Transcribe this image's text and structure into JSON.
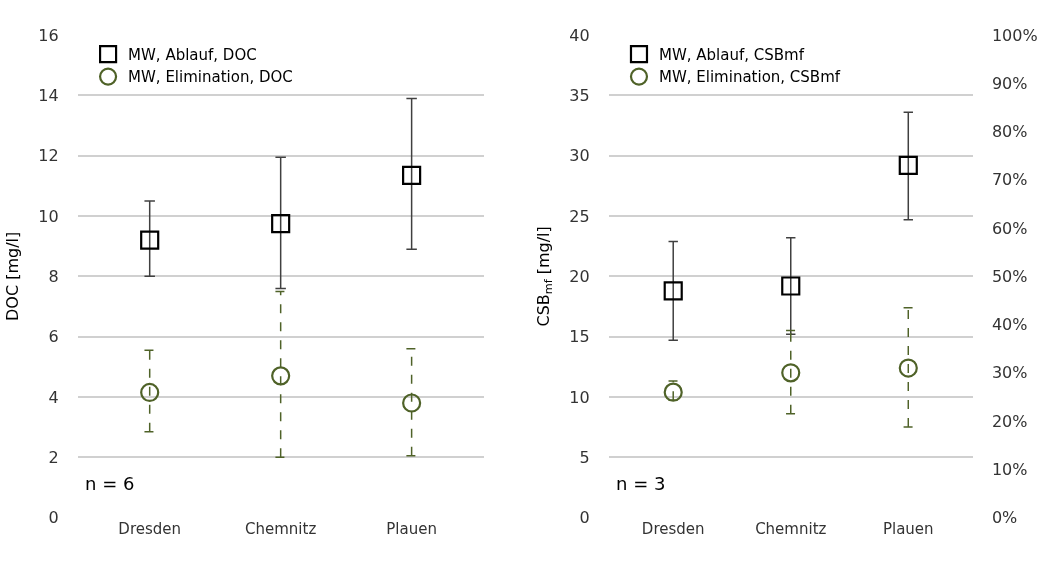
{
  "chart_data": [
    {
      "type": "scatter",
      "categories": [
        "Dresden",
        "Chemnitz",
        "Plauen"
      ],
      "ylabel": "DOC [mg/l]",
      "ylim": [
        0,
        16
      ],
      "yticks": [
        0,
        2,
        4,
        6,
        8,
        10,
        12,
        14,
        16
      ],
      "grid": "y",
      "legend": "top left",
      "annotations": [
        "n = 6"
      ],
      "series": [
        {
          "name": "MW, Ablauf, DOC",
          "color": "#000000",
          "marker": "square",
          "line_style": "solid",
          "values": [
            9.2,
            9.75,
            11.35
          ],
          "errors": [
            [
              8.0,
              10.5
            ],
            [
              7.6,
              11.95
            ],
            [
              8.9,
              13.9
            ]
          ]
        },
        {
          "name": "MW, Elimination, DOC",
          "color": "#4f6228",
          "marker": "circle",
          "line_style": "dashed",
          "values": [
            4.15,
            4.7,
            3.8
          ],
          "errors": [
            [
              2.85,
              5.55
            ],
            [
              2.0,
              7.5
            ],
            [
              2.05,
              5.6
            ]
          ]
        }
      ]
    },
    {
      "type": "scatter",
      "categories": [
        "Dresden",
        "Chemnitz",
        "Plauen"
      ],
      "ylabel": "CSB$_{mf}$ [mg/l]",
      "ylim": [
        0,
        40
      ],
      "yticks": [
        0,
        5,
        10,
        15,
        20,
        25,
        30,
        35,
        40
      ],
      "y2lim": [
        0,
        100
      ],
      "y2ticks": [
        {
          "value": 0,
          "label": "0%"
        },
        {
          "value": 10,
          "label": "10%"
        },
        {
          "value": 20,
          "label": "20%"
        },
        {
          "value": 30,
          "label": "30%"
        },
        {
          "value": 40,
          "label": "40%"
        },
        {
          "value": 50,
          "label": "50%"
        },
        {
          "value": 60,
          "label": "60%"
        },
        {
          "value": 70,
          "label": "70%"
        },
        {
          "value": 80,
          "label": "80%"
        },
        {
          "value": 90,
          "label": "90%"
        },
        {
          "value": 100,
          "label": "100%"
        }
      ],
      "grid": "y",
      "legend": "top left",
      "annotations": [
        "n = 3"
      ],
      "series": [
        {
          "name": "MW, Ablauf, CSBmf",
          "color": "#000000",
          "marker": "square",
          "line_style": "solid",
          "values": [
            18.8,
            19.2,
            29.2
          ],
          "errors": [
            [
              14.7,
              22.9
            ],
            [
              15.2,
              23.2
            ],
            [
              24.7,
              33.6
            ]
          ]
        },
        {
          "name": "MW, Elimination, CSBmf",
          "color": "#4f6228",
          "marker": "circle",
          "line_style": "dashed",
          "axis": "y2",
          "values": [
            26,
            30,
            31
          ],
          "errors": [
            [
              24.3,
              28.3
            ],
            [
              21.5,
              38.8
            ],
            [
              18.8,
              43.5
            ]
          ]
        }
      ]
    }
  ]
}
